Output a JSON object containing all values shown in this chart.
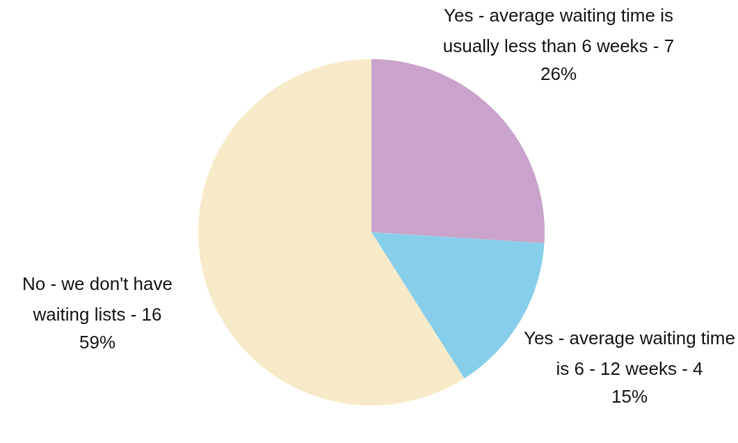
{
  "chart_data": {
    "type": "pie",
    "categories": [
      "Yes - average waiting time is usually less than 6 weeks - 7",
      "Yes - average waiting time is 6 - 12 weeks - 4",
      "No - we don't have waiting lists - 16"
    ],
    "values": [
      26,
      15,
      59
    ],
    "value_labels": [
      "26%",
      "15%",
      "59%"
    ],
    "colors": [
      "#c9a3cc",
      "#87ceea",
      "#f7eac8"
    ]
  }
}
